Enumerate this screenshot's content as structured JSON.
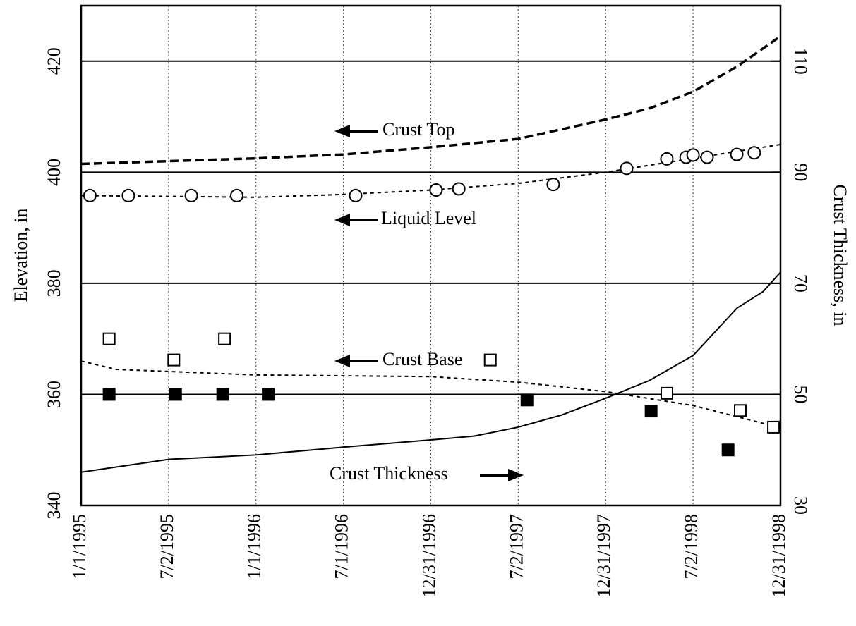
{
  "chart_data": {
    "type": "line",
    "y_label": "Elevation, in",
    "y2_label": "Crust Thickness, in",
    "xlim": [
      1995,
      1999
    ],
    "xticks": [
      {
        "value": 1995,
        "label": "1/1/1995"
      },
      {
        "value": 1995.5,
        "label": "7/2/1995"
      },
      {
        "value": 1996,
        "label": "1/1/1996"
      },
      {
        "value": 1996.5,
        "label": "7/1/1996"
      },
      {
        "value": 1997,
        "label": "12/31/1996"
      },
      {
        "value": 1997.5,
        "label": "7/2/1997"
      },
      {
        "value": 1998,
        "label": "12/31/1997"
      },
      {
        "value": 1998.5,
        "label": "7/2/1998"
      },
      {
        "value": 1999,
        "label": "12/31/1998"
      }
    ],
    "ylim": [
      340,
      430
    ],
    "yticks": [
      340,
      360,
      380,
      400,
      420
    ],
    "y2lim": [
      30,
      120
    ],
    "y2ticks": [
      30,
      50,
      70,
      90,
      110
    ],
    "grid": true,
    "series": [
      {
        "name": "Crust Top",
        "color": "#000000",
        "axis": "y",
        "line": {
          "style": "dashed",
          "x": [
            1995,
            1995.5,
            1996,
            1996.5,
            1997,
            1997.5,
            1998,
            1998.25,
            1998.5,
            1998.75,
            1999
          ],
          "values": [
            401.5,
            402,
            402.5,
            403.2,
            404.5,
            406,
            409.5,
            411.5,
            414.5,
            419,
            424.5
          ]
        }
      },
      {
        "name": "Liquid Level",
        "color": "#000000",
        "axis": "y",
        "line": {
          "style": "dotted",
          "x": [
            1995,
            1996,
            1996.5,
            1997,
            1997.5,
            1998,
            1998.5,
            1999
          ],
          "values": [
            395.8,
            395.5,
            396,
            396.8,
            398,
            400,
            402.5,
            405
          ]
        },
        "markers": {
          "marker": "circle-open",
          "x": [
            1995.05,
            1995.27,
            1995.63,
            1995.89,
            1996.57,
            1997.03,
            1997.16,
            1997.7,
            1998.12,
            1998.35,
            1998.46,
            1998.5,
            1998.58,
            1998.75,
            1998.85
          ],
          "values": [
            395.8,
            395.8,
            395.8,
            395.8,
            395.8,
            396.8,
            397,
            397.8,
            400.7,
            402.4,
            402.7,
            403.1,
            402.7,
            403.2,
            403.5
          ]
        }
      },
      {
        "name": "Crust Base",
        "color": "#000000",
        "axis": "y",
        "line": {
          "style": "dotted",
          "x": [
            1995,
            1995.2,
            1996,
            1997,
            1997.5,
            1998,
            1998.5,
            1999
          ],
          "values": [
            366,
            364.5,
            363.5,
            363.2,
            362.2,
            360.5,
            358,
            354
          ]
        },
        "markers": {
          "marker": "square-open",
          "x": [
            1995.16,
            1995.53,
            1995.82,
            1997.34,
            1998.35,
            1998.77,
            1998.96
          ],
          "values": [
            370,
            366.2,
            370,
            366.2,
            360.2,
            357.1,
            354.1
          ]
        }
      },
      {
        "name": "Crust Thickness",
        "color": "#000000",
        "axis": "y2",
        "line": {
          "style": "solid",
          "x": [
            1995,
            1995.5,
            1996,
            1996.5,
            1997,
            1997.25,
            1997.5,
            1997.75,
            1998,
            1998.25,
            1998.5,
            1998.75,
            1998.9,
            1999
          ],
          "values": [
            36,
            38.3,
            39.1,
            40.5,
            41.8,
            42.5,
            44.1,
            46.3,
            49.3,
            52.5,
            57,
            65.5,
            68.5,
            72
          ]
        },
        "markers": {
          "marker": "square-filled",
          "x": [
            1995.16,
            1995.54,
            1995.81,
            1996.07,
            1997.55,
            1998.26,
            1998.7
          ],
          "values": [
            50,
            50,
            50,
            50,
            49,
            47,
            40
          ]
        }
      }
    ]
  }
}
